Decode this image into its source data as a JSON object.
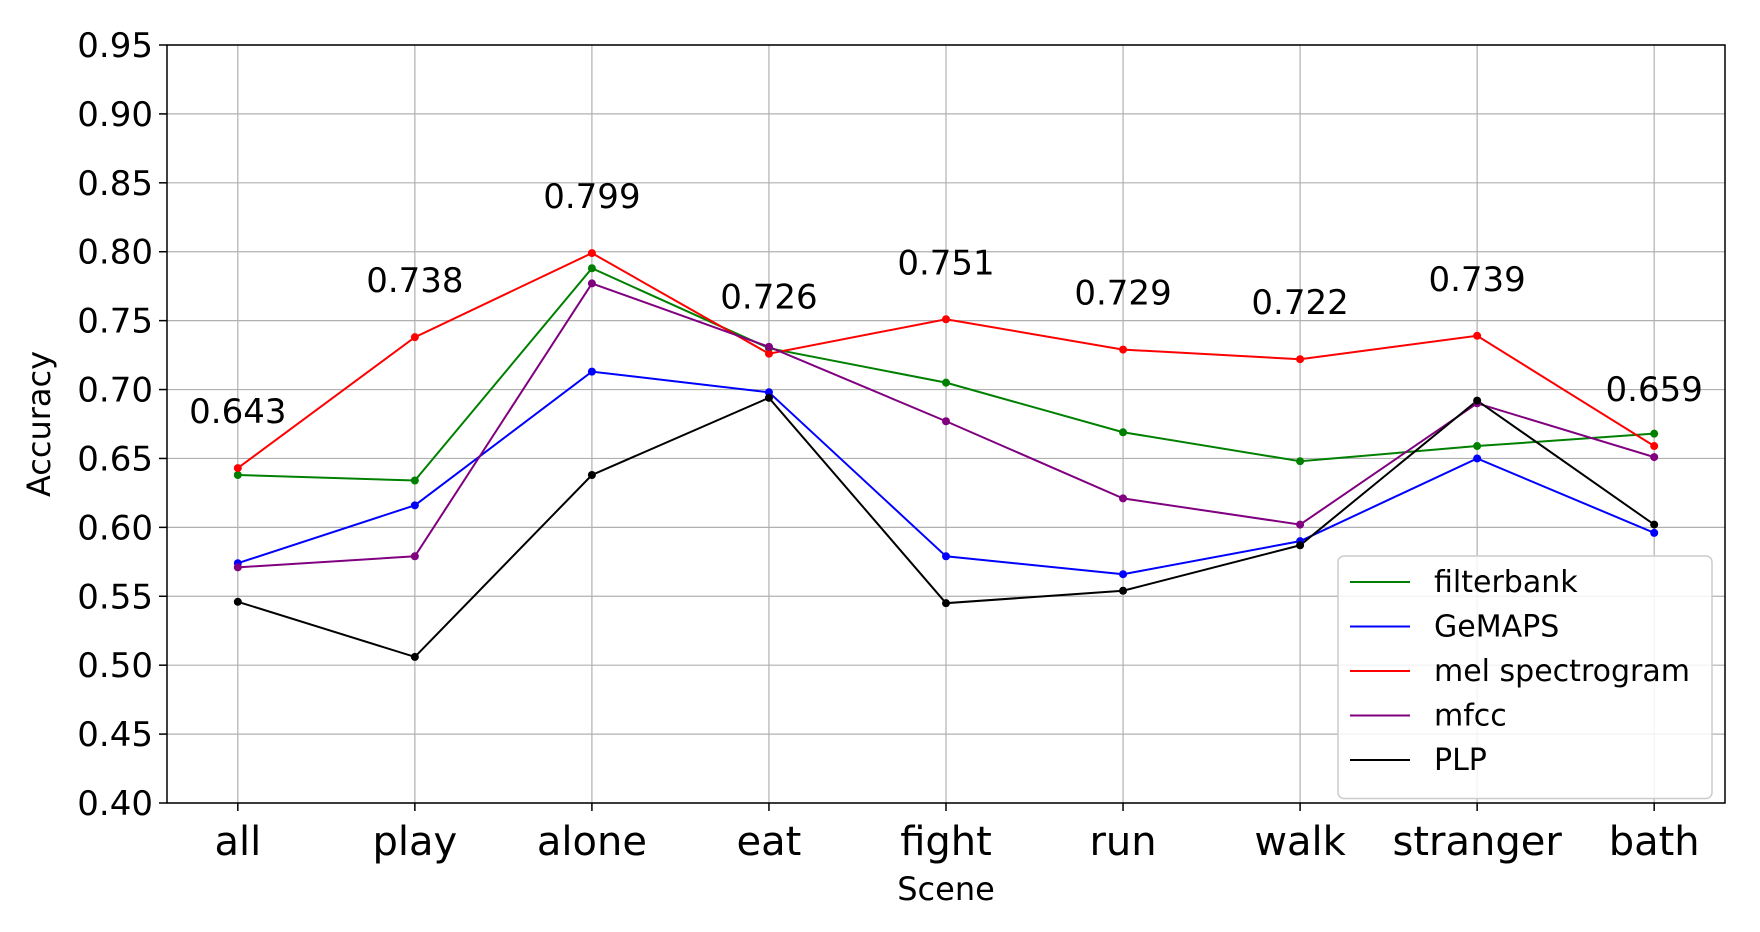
{
  "chart_data": {
    "type": "line",
    "title": "",
    "xlabel": "Scene",
    "ylabel": "Accuracy",
    "categories": [
      "all",
      "play",
      "alone",
      "eat",
      "fight",
      "run",
      "walk",
      "stranger",
      "bath"
    ],
    "ylim": [
      0.4,
      0.95
    ],
    "yticks": [
      "0.40",
      "0.45",
      "0.50",
      "0.55",
      "0.60",
      "0.65",
      "0.70",
      "0.75",
      "0.80",
      "0.85",
      "0.90",
      "0.95"
    ],
    "grid": true,
    "legend_position": "bottom-right",
    "series": [
      {
        "name": "filterbank",
        "color": "#008000",
        "values": [
          0.638,
          0.634,
          0.788,
          0.73,
          0.705,
          0.669,
          0.648,
          0.659,
          0.668
        ]
      },
      {
        "name": "GeMAPS",
        "color": "#0000ff",
        "values": [
          0.574,
          0.616,
          0.713,
          0.698,
          0.579,
          0.566,
          0.59,
          0.65,
          0.596
        ]
      },
      {
        "name": "mel spectrogram",
        "color": "#ff0000",
        "values": [
          0.643,
          0.738,
          0.799,
          0.726,
          0.751,
          0.729,
          0.722,
          0.739,
          0.659
        ]
      },
      {
        "name": "mfcc",
        "color": "#800080",
        "values": [
          0.571,
          0.579,
          0.777,
          0.731,
          0.677,
          0.621,
          0.602,
          0.69,
          0.651
        ]
      },
      {
        "name": "PLP",
        "color": "#000000",
        "values": [
          0.546,
          0.506,
          0.638,
          0.694,
          0.545,
          0.554,
          0.587,
          0.692,
          0.602
        ]
      }
    ],
    "annotations": [
      "0.643",
      "0.738",
      "0.799",
      "0.726",
      "0.751",
      "0.729",
      "0.722",
      "0.739",
      "0.659"
    ]
  }
}
